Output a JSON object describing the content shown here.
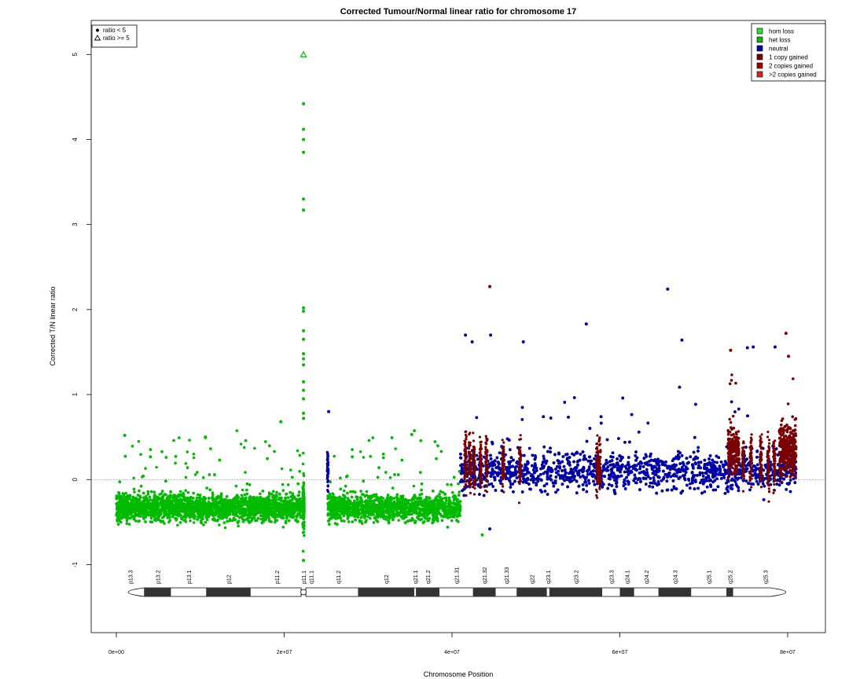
{
  "chart_data": {
    "type": "scatter",
    "title": "Corrected Tumour/Normal linear ratio for chromosome  17",
    "xlabel": "Chromosome Position",
    "ylabel": "Corrected T/N linear ratio",
    "xlim": [
      -3000000,
      84500000
    ],
    "ylim": [
      -1.8,
      5.4
    ],
    "xticks": [
      {
        "value": 0,
        "label": "0e+00"
      },
      {
        "value": 20000000,
        "label": "2e+07"
      },
      {
        "value": 40000000,
        "label": "4e+07"
      },
      {
        "value": 60000000,
        "label": "6e+07"
      },
      {
        "value": 80000000,
        "label": "8e+07"
      }
    ],
    "yticks": [
      -1,
      0,
      1,
      2,
      3,
      4,
      5
    ],
    "reference_line": 0,
    "colors": {
      "hom_loss": "#33dd33",
      "het_loss": "#00bb00",
      "neutral": "#0000aa",
      "one_copy_gained": "#7a0000",
      "two_copies_gained": "#990000",
      "gt_two_copies_gained": "#dd2222"
    },
    "legend_shape": {
      "position": "top-left",
      "entries": [
        {
          "symbol": "dot",
          "label": "ratio < 5"
        },
        {
          "symbol": "triangle",
          "label": "ratio >= 5"
        }
      ]
    },
    "legend_class": {
      "position": "top-right",
      "entries": [
        {
          "label": "hom loss",
          "color": "#33dd33"
        },
        {
          "label": "het loss",
          "color": "#00bb00"
        },
        {
          "label": "neutral",
          "color": "#0000aa"
        },
        {
          "label": "1 copy gained",
          "color": "#7a0000"
        },
        {
          "label": "2 copies gained",
          "color": "#990000"
        },
        {
          "label": ">2 copies gained",
          "color": "#dd2222"
        }
      ]
    },
    "series": [
      {
        "class": "het_loss",
        "range": [
          0,
          22000000
        ],
        "center": -0.33,
        "spread": 0.15
      },
      {
        "class": "het_loss",
        "range": [
          25200000,
          41000000
        ],
        "center": -0.33,
        "spread": 0.15
      },
      {
        "class": "neutral",
        "range": [
          41000000,
          81000000
        ],
        "center": 0.1,
        "spread": 0.22
      },
      {
        "class": "one_copy_gained",
        "range": [
          72900000,
          74200000
        ],
        "center": 0.35,
        "spread": 0.25
      },
      {
        "class": "one_copy_gained",
        "range": [
          79000000,
          81000000
        ],
        "center": 0.35,
        "spread": 0.3
      }
    ],
    "gained_stripes": [
      41600000,
      42100000,
      42600000,
      43400000,
      44100000,
      46100000,
      48100000,
      57300000,
      57600000,
      74700000,
      75600000,
      76800000,
      77700000,
      78400000
    ],
    "centromere_column": {
      "x": 22300000,
      "center": -0.3,
      "spread": 0.22,
      "class": "het_loss"
    },
    "outliers": [
      {
        "x": 22300000,
        "y": 5.0,
        "class": "het_loss",
        "symbol": "triangle"
      },
      {
        "x": 22300000,
        "y": 4.42,
        "class": "het_loss"
      },
      {
        "x": 22300000,
        "y": 4.12,
        "class": "het_loss"
      },
      {
        "x": 22300000,
        "y": 4.0,
        "class": "het_loss"
      },
      {
        "x": 22300000,
        "y": 3.85,
        "class": "het_loss"
      },
      {
        "x": 22300000,
        "y": 3.3,
        "class": "het_loss"
      },
      {
        "x": 22300000,
        "y": 3.17,
        "class": "het_loss"
      },
      {
        "x": 22300000,
        "y": 2.02,
        "class": "het_loss"
      },
      {
        "x": 22300000,
        "y": 1.98,
        "class": "het_loss"
      },
      {
        "x": 22300000,
        "y": 1.75,
        "class": "het_loss"
      },
      {
        "x": 22300000,
        "y": 1.65,
        "class": "het_loss"
      },
      {
        "x": 22300000,
        "y": 1.48,
        "class": "het_loss"
      },
      {
        "x": 22300000,
        "y": 1.42,
        "class": "het_loss"
      },
      {
        "x": 22300000,
        "y": 1.35,
        "class": "het_loss"
      },
      {
        "x": 22300000,
        "y": 1.15,
        "class": "het_loss"
      },
      {
        "x": 22300000,
        "y": 1.05,
        "class": "het_loss"
      },
      {
        "x": 22300000,
        "y": 0.95,
        "class": "het_loss"
      },
      {
        "x": 22300000,
        "y": 0.78,
        "class": "het_loss"
      },
      {
        "x": 22300000,
        "y": 0.72,
        "class": "het_loss"
      },
      {
        "x": 22300000,
        "y": -0.95,
        "class": "het_loss"
      },
      {
        "x": 19600000,
        "y": 0.68,
        "class": "het_loss"
      },
      {
        "x": 1000000,
        "y": 0.52,
        "class": "het_loss"
      },
      {
        "x": 10600000,
        "y": 0.5,
        "class": "het_loss"
      },
      {
        "x": 35200000,
        "y": 0.53,
        "class": "het_loss"
      },
      {
        "x": 25300000,
        "y": 0.8,
        "class": "neutral"
      },
      {
        "x": 44500000,
        "y": 2.27,
        "class": "one_copy_gained"
      },
      {
        "x": 65700000,
        "y": 2.24,
        "class": "neutral"
      },
      {
        "x": 56000000,
        "y": 1.83,
        "class": "neutral"
      },
      {
        "x": 79800000,
        "y": 1.72,
        "class": "one_copy_gained"
      },
      {
        "x": 41600000,
        "y": 1.7,
        "class": "neutral"
      },
      {
        "x": 44600000,
        "y": 1.7,
        "class": "neutral"
      },
      {
        "x": 48500000,
        "y": 1.62,
        "class": "neutral"
      },
      {
        "x": 67400000,
        "y": 1.64,
        "class": "neutral"
      },
      {
        "x": 42400000,
        "y": 1.62,
        "class": "neutral"
      },
      {
        "x": 75200000,
        "y": 1.55,
        "class": "neutral"
      },
      {
        "x": 75900000,
        "y": 1.56,
        "class": "neutral"
      },
      {
        "x": 78500000,
        "y": 1.56,
        "class": "neutral"
      },
      {
        "x": 73200000,
        "y": 1.52,
        "class": "one_copy_gained"
      },
      {
        "x": 80100000,
        "y": 1.45,
        "class": "one_copy_gained"
      },
      {
        "x": 44500000,
        "y": -0.58,
        "class": "neutral"
      },
      {
        "x": 43600000,
        "y": -0.65,
        "class": "het_loss"
      }
    ],
    "ideogram": {
      "start": 0,
      "end": 81200000,
      "centromere": 22300000,
      "bands": [
        {
          "name": "p13.3",
          "start": 0,
          "end": 3300000,
          "stain": "gneg"
        },
        {
          "name": "p13.2",
          "start": 3300000,
          "end": 6500000,
          "stain": "gpos"
        },
        {
          "name": "p13.1",
          "start": 6500000,
          "end": 10700000,
          "stain": "gneg"
        },
        {
          "name": "p12",
          "start": 10700000,
          "end": 16000000,
          "stain": "gpos"
        },
        {
          "name": "p11.2",
          "start": 16000000,
          "end": 22200000,
          "stain": "gneg"
        },
        {
          "name": "p11.1",
          "start": 22200000,
          "end": 22400000,
          "stain": "acen"
        },
        {
          "name": "q11.1",
          "start": 22400000,
          "end": 24000000,
          "stain": "acen"
        },
        {
          "name": "q11.2",
          "start": 24000000,
          "end": 28800000,
          "stain": "gneg"
        },
        {
          "name": "q12",
          "start": 28800000,
          "end": 35500000,
          "stain": "gpos"
        },
        {
          "name": "q21.1",
          "start": 35500000,
          "end": 35700000,
          "stain": "gneg"
        },
        {
          "name": "q21.2",
          "start": 35700000,
          "end": 38500000,
          "stain": "gpos"
        },
        {
          "name": "q21.31",
          "start": 38500000,
          "end": 42500000,
          "stain": "gneg"
        },
        {
          "name": "q21.32",
          "start": 42500000,
          "end": 45200000,
          "stain": "gpos"
        },
        {
          "name": "q21.33",
          "start": 45200000,
          "end": 47700000,
          "stain": "gneg"
        },
        {
          "name": "q22",
          "start": 47700000,
          "end": 51300000,
          "stain": "gpos"
        },
        {
          "name": "q23.1",
          "start": 51300000,
          "end": 51600000,
          "stain": "gneg"
        },
        {
          "name": "q23.2",
          "start": 51600000,
          "end": 57900000,
          "stain": "gpos"
        },
        {
          "name": "q23.3",
          "start": 57900000,
          "end": 60000000,
          "stain": "gneg"
        },
        {
          "name": "q24.1",
          "start": 60000000,
          "end": 61700000,
          "stain": "gpos"
        },
        {
          "name": "q24.2",
          "start": 61700000,
          "end": 64600000,
          "stain": "gneg"
        },
        {
          "name": "q24.3",
          "start": 64600000,
          "end": 68500000,
          "stain": "gpos"
        },
        {
          "name": "q25.1",
          "start": 68500000,
          "end": 72700000,
          "stain": "gneg"
        },
        {
          "name": "q25.2",
          "start": 72700000,
          "end": 73500000,
          "stain": "gpos"
        },
        {
          "name": "q25.3",
          "start": 73500000,
          "end": 81200000,
          "stain": "gneg"
        }
      ]
    }
  }
}
